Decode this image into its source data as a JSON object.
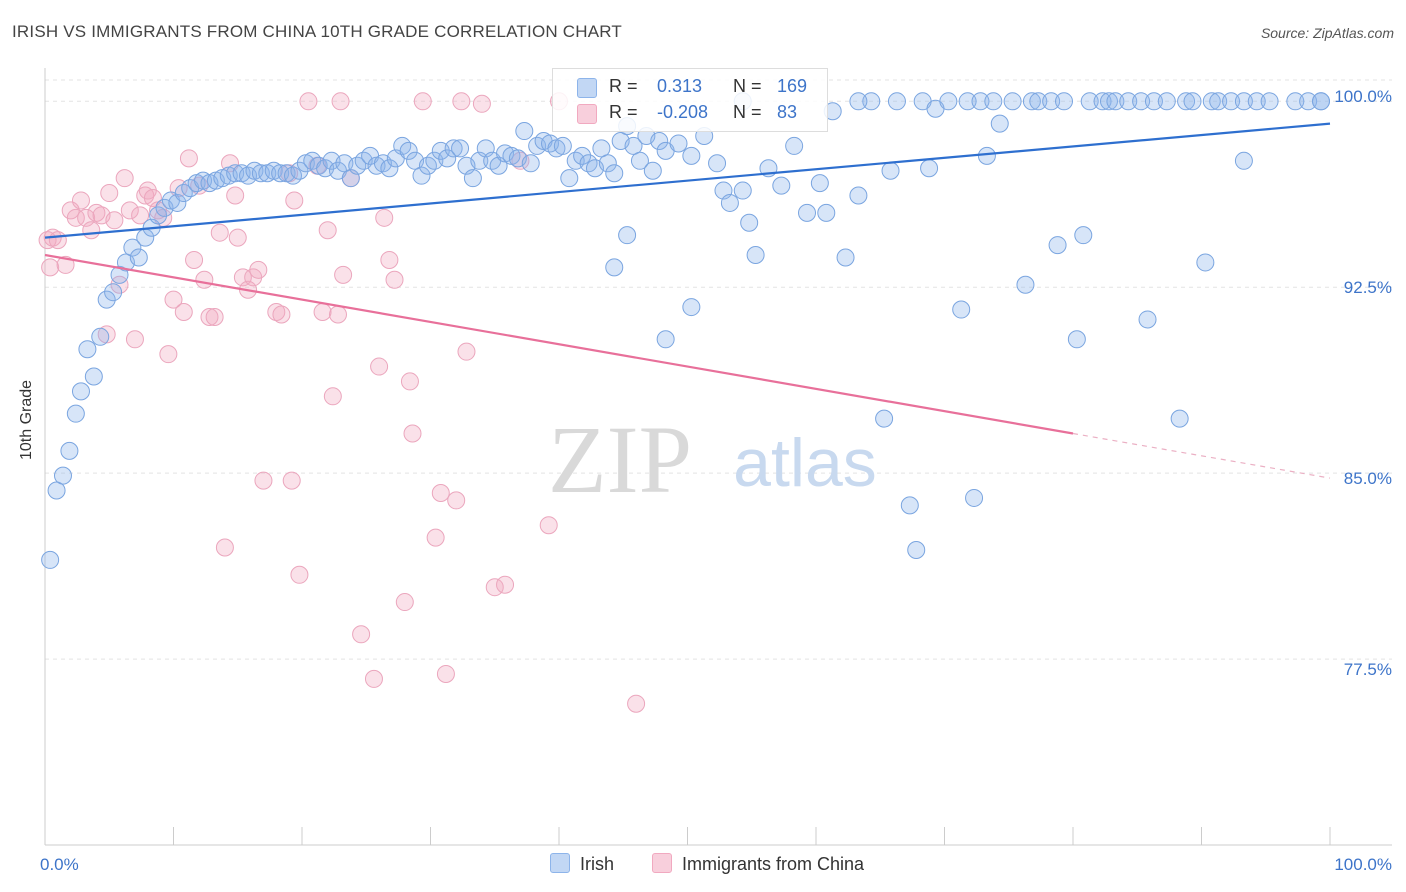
{
  "title": "IRISH VS IMMIGRANTS FROM CHINA 10TH GRADE CORRELATION CHART",
  "source": "Source: ZipAtlas.com",
  "watermark": {
    "zip": "ZIP",
    "atlas": "atlas"
  },
  "legend_top": {
    "rows": [
      {
        "r_label": "R =",
        "r_value": "0.313",
        "n_label": "N =",
        "n_value": "169"
      },
      {
        "r_label": "R =",
        "r_value": "-0.208",
        "n_label": "N =",
        "n_value": "83"
      }
    ]
  },
  "colors": {
    "irish": "#8db4ea",
    "irish_line": "#2e6fcf",
    "china": "#f1a9c0",
    "china_line": "#e8709a",
    "accent_text": "#3d74c9"
  },
  "chart_data": {
    "type": "scatter",
    "title": "IRISH VS IMMIGRANTS FROM CHINA 10TH GRADE CORRELATION CHART",
    "xlabel": "",
    "ylabel": "10th Grade",
    "xlim": [
      0,
      100
    ],
    "ylim": [
      70,
      100.9
    ],
    "x_tick_labels": [
      "0.0%",
      "100.0%"
    ],
    "y_ticks": [
      100,
      92.5,
      85,
      77.5
    ],
    "y_tick_labels": [
      "100.0%",
      "92.5%",
      "85.0%",
      "77.5%"
    ],
    "grid": true,
    "legend": "top-center and bottom",
    "series": [
      {
        "name": "Irish",
        "color": "#8db4ea",
        "trend": {
          "x": [
            0,
            100
          ],
          "y": [
            94.5,
            99.1
          ],
          "dashed_from": null
        },
        "points": [
          [
            0.4,
            81.5
          ],
          [
            0.9,
            84.3
          ],
          [
            1.4,
            84.9
          ],
          [
            1.9,
            85.9
          ],
          [
            2.4,
            87.4
          ],
          [
            2.8,
            88.3
          ],
          [
            3.8,
            88.9
          ],
          [
            3.3,
            90.0
          ],
          [
            4.3,
            90.5
          ],
          [
            4.8,
            92.0
          ],
          [
            5.3,
            92.3
          ],
          [
            5.8,
            93.0
          ],
          [
            6.3,
            93.5
          ],
          [
            6.8,
            94.1
          ],
          [
            7.3,
            93.7
          ],
          [
            7.8,
            94.5
          ],
          [
            8.3,
            94.9
          ],
          [
            8.8,
            95.4
          ],
          [
            9.3,
            95.7
          ],
          [
            9.8,
            96.0
          ],
          [
            10.3,
            95.9
          ],
          [
            10.8,
            96.3
          ],
          [
            11.3,
            96.5
          ],
          [
            11.8,
            96.7
          ],
          [
            12.3,
            96.8
          ],
          [
            12.8,
            96.7
          ],
          [
            13.3,
            96.8
          ],
          [
            13.8,
            96.9
          ],
          [
            14.3,
            97.0
          ],
          [
            14.8,
            97.1
          ],
          [
            15.3,
            97.1
          ],
          [
            15.8,
            97.0
          ],
          [
            16.3,
            97.2
          ],
          [
            16.8,
            97.1
          ],
          [
            17.3,
            97.1
          ],
          [
            17.8,
            97.2
          ],
          [
            18.3,
            97.1
          ],
          [
            18.8,
            97.1
          ],
          [
            19.3,
            97.0
          ],
          [
            19.8,
            97.2
          ],
          [
            20.3,
            97.5
          ],
          [
            20.8,
            97.6
          ],
          [
            21.3,
            97.4
          ],
          [
            21.8,
            97.3
          ],
          [
            22.3,
            97.6
          ],
          [
            22.8,
            97.2
          ],
          [
            23.3,
            97.5
          ],
          [
            23.8,
            96.9
          ],
          [
            24.3,
            97.4
          ],
          [
            24.8,
            97.6
          ],
          [
            25.3,
            97.8
          ],
          [
            25.8,
            97.4
          ],
          [
            26.3,
            97.5
          ],
          [
            26.8,
            97.3
          ],
          [
            27.3,
            97.7
          ],
          [
            27.8,
            98.2
          ],
          [
            28.3,
            98.0
          ],
          [
            28.8,
            97.6
          ],
          [
            29.3,
            97.0
          ],
          [
            29.8,
            97.4
          ],
          [
            30.3,
            97.6
          ],
          [
            30.8,
            98.0
          ],
          [
            31.3,
            97.7
          ],
          [
            31.8,
            98.1
          ],
          [
            32.3,
            98.1
          ],
          [
            32.8,
            97.4
          ],
          [
            33.3,
            96.9
          ],
          [
            33.8,
            97.6
          ],
          [
            34.3,
            98.1
          ],
          [
            34.8,
            97.6
          ],
          [
            35.3,
            97.4
          ],
          [
            35.8,
            97.9
          ],
          [
            36.3,
            97.8
          ],
          [
            36.8,
            97.7
          ],
          [
            37.3,
            98.8
          ],
          [
            37.8,
            97.5
          ],
          [
            38.3,
            98.2
          ],
          [
            38.8,
            98.4
          ],
          [
            39.3,
            98.3
          ],
          [
            39.8,
            98.1
          ],
          [
            40.3,
            98.2
          ],
          [
            40.8,
            96.9
          ],
          [
            41.3,
            97.6
          ],
          [
            41.8,
            97.8
          ],
          [
            42.3,
            97.5
          ],
          [
            42.8,
            97.3
          ],
          [
            43.3,
            98.1
          ],
          [
            43.8,
            97.5
          ],
          [
            44.3,
            97.1
          ],
          [
            44.8,
            98.4
          ],
          [
            45.3,
            99.0
          ],
          [
            45.8,
            98.2
          ],
          [
            46.3,
            97.6
          ],
          [
            46.8,
            98.6
          ],
          [
            47.3,
            97.2
          ],
          [
            47.8,
            98.4
          ],
          [
            48.3,
            98.0
          ],
          [
            49.3,
            98.3
          ],
          [
            50.3,
            97.8
          ],
          [
            51.3,
            98.6
          ],
          [
            52.3,
            97.5
          ],
          [
            52.8,
            96.4
          ],
          [
            53.3,
            95.9
          ],
          [
            54.3,
            96.4
          ],
          [
            54.8,
            95.1
          ],
          [
            55.3,
            93.8
          ],
          [
            56.3,
            97.3
          ],
          [
            57.3,
            96.6
          ],
          [
            58.3,
            98.2
          ],
          [
            59.3,
            95.5
          ],
          [
            60.3,
            96.7
          ],
          [
            60.8,
            95.5
          ],
          [
            61.3,
            99.6
          ],
          [
            62.3,
            93.7
          ],
          [
            63.3,
            96.2
          ],
          [
            64.3,
            100.0
          ],
          [
            65.3,
            87.2
          ],
          [
            65.8,
            97.2
          ],
          [
            66.3,
            100.0
          ],
          [
            67.3,
            83.7
          ],
          [
            67.8,
            81.9
          ],
          [
            68.3,
            100.0
          ],
          [
            68.8,
            97.3
          ],
          [
            69.3,
            99.7
          ],
          [
            70.3,
            100.0
          ],
          [
            71.3,
            91.6
          ],
          [
            71.8,
            100.0
          ],
          [
            72.3,
            84.0
          ],
          [
            72.8,
            100.0
          ],
          [
            73.3,
            97.8
          ],
          [
            73.8,
            100.0
          ],
          [
            74.3,
            99.1
          ],
          [
            75.3,
            100.0
          ],
          [
            76.3,
            92.6
          ],
          [
            76.8,
            100.0
          ],
          [
            77.3,
            100.0
          ],
          [
            78.3,
            100.0
          ],
          [
            78.8,
            94.2
          ],
          [
            79.3,
            100.0
          ],
          [
            80.3,
            90.4
          ],
          [
            80.8,
            94.6
          ],
          [
            81.3,
            100.0
          ],
          [
            82.3,
            100.0
          ],
          [
            82.8,
            100.0
          ],
          [
            83.3,
            100.0
          ],
          [
            84.3,
            100.0
          ],
          [
            85.3,
            100.0
          ],
          [
            85.8,
            91.2
          ],
          [
            86.3,
            100.0
          ],
          [
            87.3,
            100.0
          ],
          [
            88.3,
            87.2
          ],
          [
            88.8,
            100.0
          ],
          [
            89.3,
            100.0
          ],
          [
            90.3,
            93.5
          ],
          [
            90.8,
            100.0
          ],
          [
            91.3,
            100.0
          ],
          [
            92.3,
            100.0
          ],
          [
            93.3,
            100.0
          ],
          [
            94.3,
            100.0
          ],
          [
            95.3,
            100.0
          ],
          [
            97.3,
            100.0
          ],
          [
            98.3,
            100.0
          ],
          [
            99.3,
            100.0
          ],
          [
            44.3,
            93.3
          ],
          [
            45.3,
            94.6
          ],
          [
            50.3,
            91.7
          ],
          [
            48.3,
            90.4
          ],
          [
            93.3,
            97.6
          ],
          [
            99.3,
            100.0
          ],
          [
            54.3,
            100.0
          ],
          [
            63.3,
            100.0
          ]
        ]
      },
      {
        "name": "Immigrants from China",
        "color": "#f1a9c0",
        "trend": {
          "x": [
            0,
            80
          ],
          "y": [
            93.8,
            86.6
          ],
          "dashed_to": [
            100,
            84.8
          ]
        },
        "points": [
          [
            0.2,
            94.4
          ],
          [
            0.4,
            93.3
          ],
          [
            0.6,
            94.5
          ],
          [
            1.0,
            94.4
          ],
          [
            1.6,
            93.4
          ],
          [
            2.0,
            95.6
          ],
          [
            2.4,
            95.3
          ],
          [
            2.8,
            96.0
          ],
          [
            3.2,
            95.3
          ],
          [
            3.6,
            94.8
          ],
          [
            4.0,
            95.5
          ],
          [
            4.4,
            95.4
          ],
          [
            4.8,
            90.6
          ],
          [
            5.0,
            96.3
          ],
          [
            5.4,
            95.2
          ],
          [
            5.8,
            92.6
          ],
          [
            6.2,
            96.9
          ],
          [
            6.6,
            95.6
          ],
          [
            7.0,
            90.4
          ],
          [
            7.4,
            95.4
          ],
          [
            7.8,
            96.2
          ],
          [
            8.0,
            96.4
          ],
          [
            8.4,
            96.1
          ],
          [
            8.8,
            95.6
          ],
          [
            9.2,
            95.3
          ],
          [
            9.6,
            89.8
          ],
          [
            10.0,
            92.0
          ],
          [
            10.4,
            96.5
          ],
          [
            10.8,
            91.5
          ],
          [
            11.2,
            97.7
          ],
          [
            11.6,
            93.6
          ],
          [
            12.0,
            96.6
          ],
          [
            12.4,
            92.8
          ],
          [
            12.8,
            91.3
          ],
          [
            13.2,
            91.3
          ],
          [
            13.6,
            94.7
          ],
          [
            14.0,
            82.0
          ],
          [
            14.4,
            97.5
          ],
          [
            14.8,
            96.2
          ],
          [
            15.0,
            94.5
          ],
          [
            15.4,
            92.9
          ],
          [
            15.8,
            92.4
          ],
          [
            16.2,
            92.9
          ],
          [
            16.6,
            93.2
          ],
          [
            17.0,
            84.7
          ],
          [
            18.0,
            91.5
          ],
          [
            18.4,
            91.4
          ],
          [
            19.0,
            97.1
          ],
          [
            19.2,
            84.7
          ],
          [
            19.4,
            96.0
          ],
          [
            19.8,
            80.9
          ],
          [
            21.2,
            97.4
          ],
          [
            21.6,
            91.5
          ],
          [
            22.0,
            94.8
          ],
          [
            22.4,
            88.1
          ],
          [
            22.8,
            91.4
          ],
          [
            23.2,
            93.0
          ],
          [
            23.8,
            96.9
          ],
          [
            24.6,
            78.5
          ],
          [
            25.6,
            76.7
          ],
          [
            26.0,
            89.3
          ],
          [
            26.4,
            95.3
          ],
          [
            26.8,
            93.6
          ],
          [
            27.2,
            92.8
          ],
          [
            28.0,
            79.8
          ],
          [
            28.4,
            88.7
          ],
          [
            28.6,
            86.6
          ],
          [
            29.4,
            100.0
          ],
          [
            30.4,
            82.4
          ],
          [
            30.8,
            84.2
          ],
          [
            31.2,
            76.9
          ],
          [
            32.0,
            83.9
          ],
          [
            32.4,
            100.0
          ],
          [
            32.8,
            89.9
          ],
          [
            34.0,
            99.9
          ],
          [
            35.0,
            80.4
          ],
          [
            35.8,
            80.5
          ],
          [
            37.0,
            97.6
          ],
          [
            39.2,
            82.9
          ],
          [
            40.0,
            100.0
          ],
          [
            46.0,
            75.7
          ],
          [
            23.0,
            100.0
          ],
          [
            20.5,
            100.0
          ]
        ]
      }
    ]
  },
  "bottom_legend": {
    "irish": "Irish",
    "china": "Immigrants from China"
  }
}
